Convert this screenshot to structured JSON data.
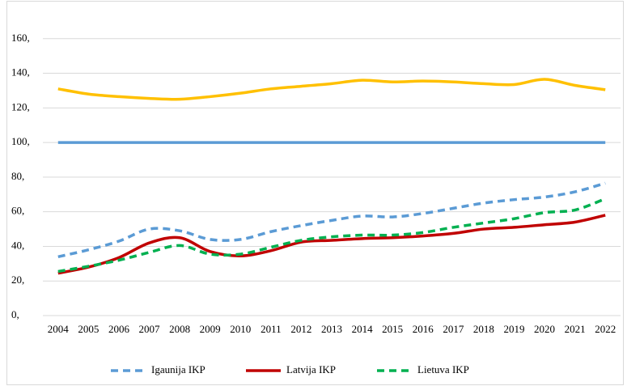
{
  "chart_data": {
    "type": "line",
    "smooth": true,
    "grid": true,
    "categories": [
      "2004",
      "2005",
      "2006",
      "2007",
      "2008",
      "2009",
      "2010",
      "2011",
      "2012",
      "2013",
      "2014",
      "2015",
      "2016",
      "2017",
      "2018",
      "2019",
      "2020",
      "2021",
      "2022"
    ],
    "ylim": [
      0,
      180
    ],
    "yticks": [
      {
        "value": 0,
        "label": "0,"
      },
      {
        "value": 20,
        "label": "20,"
      },
      {
        "value": 40,
        "label": "40,"
      },
      {
        "value": 60,
        "label": "60,"
      },
      {
        "value": 80,
        "label": "80,"
      },
      {
        "value": 100,
        "label": "100,"
      },
      {
        "value": 120,
        "label": "120,"
      },
      {
        "value": 140,
        "label": "140,"
      },
      {
        "value": 160,
        "label": "160,"
      }
    ],
    "series": [
      {
        "color": "#ffc000",
        "dash": false,
        "values": [
          131,
          128,
          126.5,
          125.5,
          125,
          126.5,
          128.5,
          131,
          132.5,
          134,
          136,
          135,
          135.5,
          135,
          134,
          133.5,
          136.5,
          133,
          130.5
        ]
      },
      {
        "color": "#5b9bd5",
        "dash": false,
        "values": [
          100,
          100,
          100,
          100,
          100,
          100,
          100,
          100,
          100,
          100,
          100,
          100,
          100,
          100,
          100,
          100,
          100,
          100,
          100
        ]
      },
      {
        "name": "Igaunija IKP",
        "color": "#5b9bd5",
        "dash": true,
        "values": [
          34,
          38,
          43,
          50,
          49,
          44,
          44,
          48.5,
          52,
          55,
          57.5,
          57,
          59,
          62,
          65,
          67,
          68.5,
          71.5,
          76.5
        ]
      },
      {
        "name": "Latvija IKP",
        "color": "#c00000",
        "dash": false,
        "values": [
          24.5,
          28,
          33.5,
          42,
          45,
          37,
          34.5,
          37.5,
          42.5,
          43.5,
          44.5,
          45,
          46,
          47.5,
          50,
          51,
          52.5,
          54,
          58
        ]
      },
      {
        "name": "Lietuva IKP",
        "color": "#00b050",
        "dash": true,
        "values": [
          25.5,
          28.5,
          32,
          36.5,
          40.5,
          35.5,
          35.5,
          39.5,
          43.5,
          45.5,
          46.5,
          46.5,
          48,
          51,
          53.5,
          56,
          59.5,
          61,
          67.5
        ]
      }
    ]
  }
}
